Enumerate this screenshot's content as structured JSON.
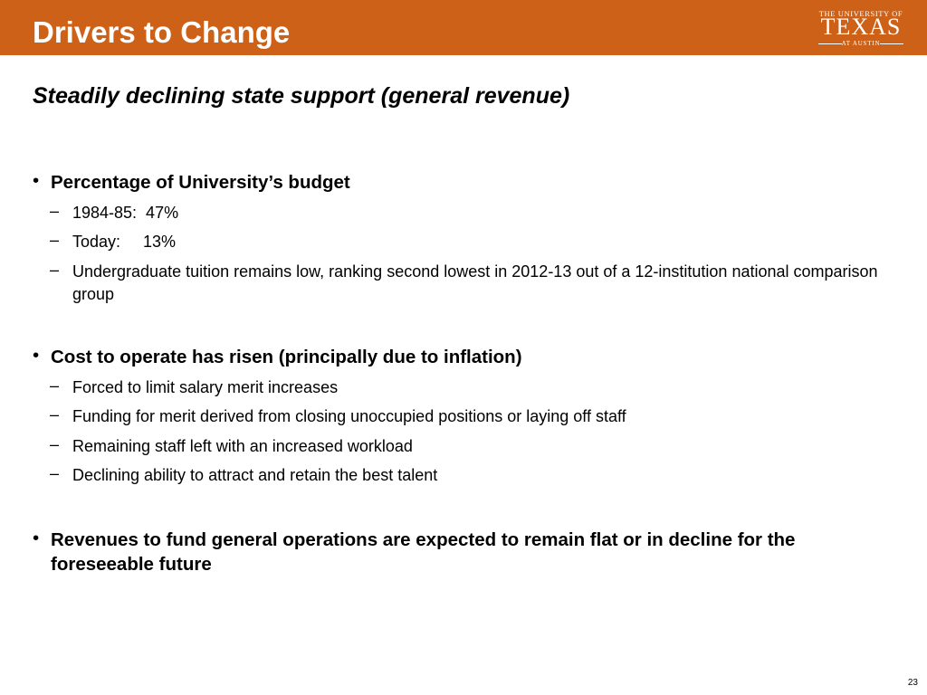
{
  "header": {
    "title": "Drivers to Change",
    "logo": {
      "top": "THE UNIVERSITY OF",
      "main": "TEXAS",
      "bottom": "AT AUSTIN"
    }
  },
  "subtitle": "Steadily declining state support (general revenue)",
  "sections": [
    {
      "bullet": "Percentage of University’s budget",
      "items": [
        "1984-85:  47%",
        "Today:     13%",
        "Undergraduate tuition remains low, ranking second lowest in 2012-13 out of a 12-institution national comparison group"
      ]
    },
    {
      "bullet": "Cost to operate has risen (principally due to inflation)",
      "items": [
        "Forced to limit salary merit increases",
        "Funding for merit derived from closing unoccupied positions or laying off staff",
        "Remaining staff left with an increased workload",
        "Declining ability to attract and retain the best talent"
      ]
    },
    {
      "bullet": "Revenues to fund general operations are expected to remain flat or in decline for the foreseeable future",
      "items": []
    }
  ],
  "symbols": {
    "bullet": "•",
    "dash": "–"
  },
  "page_number": "23",
  "colors": {
    "header": "#cc6117",
    "header_text": "#ffffff",
    "body_text": "#000000"
  }
}
